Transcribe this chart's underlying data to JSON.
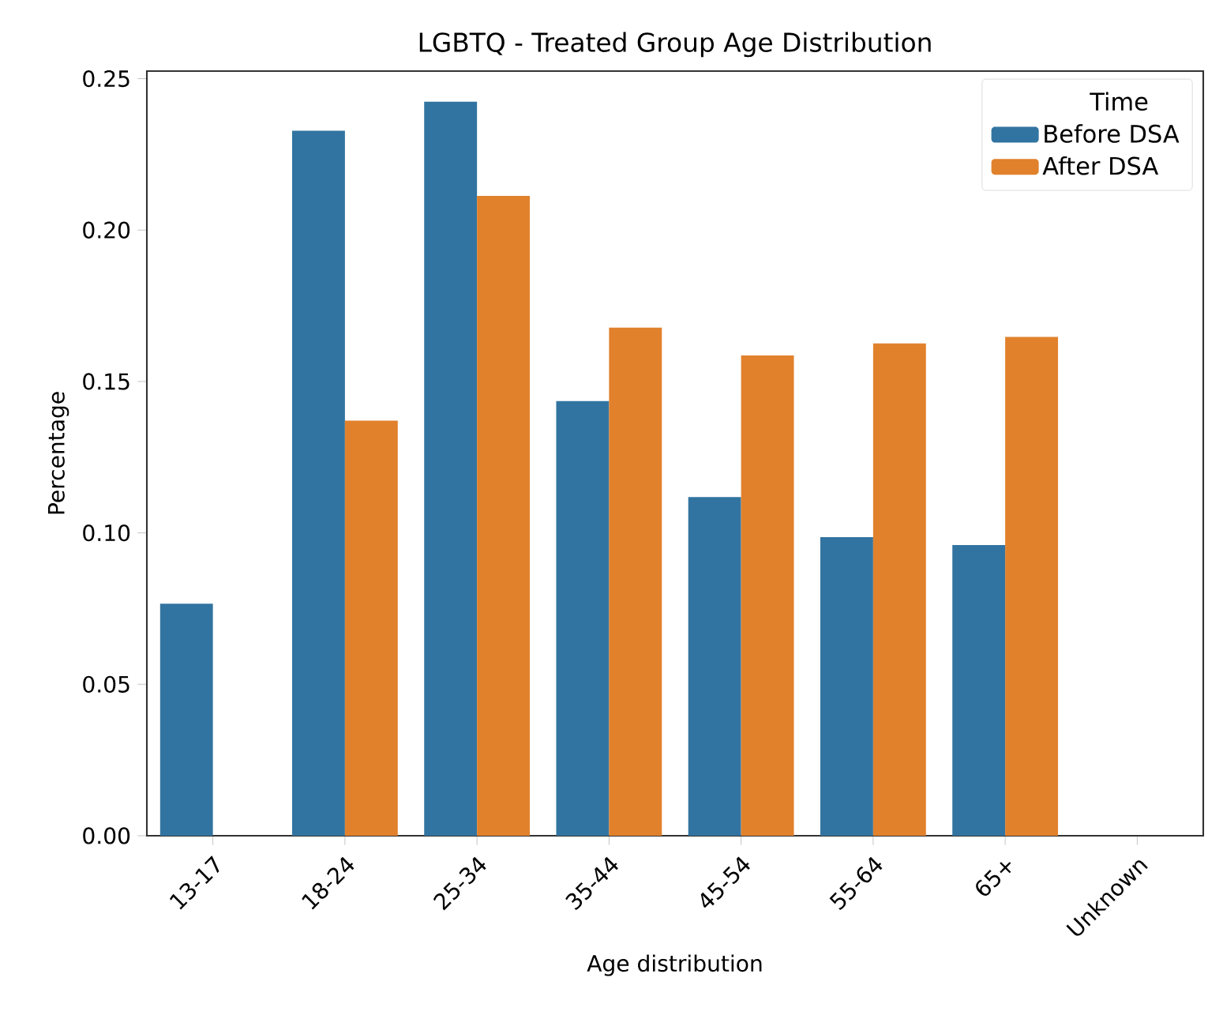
{
  "chart_data": {
    "type": "bar",
    "title": "LGBTQ - Treated Group Age Distribution",
    "xlabel": "Age distribution",
    "ylabel": "Percentage",
    "legend_title": "Time",
    "legend": "top right",
    "categories": [
      "13-17",
      "18-24",
      "25-34",
      "35-44",
      "45-54",
      "55-64",
      "65+",
      "Unknown"
    ],
    "series": [
      {
        "name": "Before DSA",
        "color": "#3274a1",
        "values": [
          0.0766,
          0.2328,
          0.2424,
          0.1435,
          0.1118,
          0.0986,
          0.096,
          0
        ]
      },
      {
        "name": "After DSA",
        "color": "#e1812c",
        "values": [
          0,
          0.1371,
          0.2113,
          0.1678,
          0.1586,
          0.1626,
          0.1647,
          0
        ]
      }
    ],
    "ylim": [
      0,
      0.2525
    ],
    "yticks": [
      {
        "value": 0,
        "label": "0.00"
      },
      {
        "value": 0.05,
        "label": "0.05"
      },
      {
        "value": 0.1,
        "label": "0.10"
      },
      {
        "value": 0.15,
        "label": "0.15"
      },
      {
        "value": 0.2,
        "label": "0.20"
      },
      {
        "value": 0.25,
        "label": "0.25"
      }
    ]
  }
}
